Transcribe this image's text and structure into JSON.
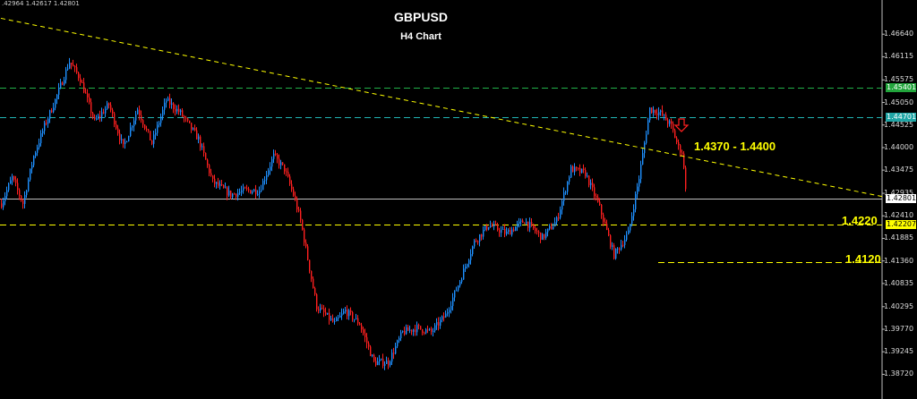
{
  "ohlc_text": ".42964 1.42617 1.42801",
  "chart_data": {
    "type": "candlestick",
    "title": "GBPUSD",
    "subtitle": "H4 Chart",
    "y_ticks": [
      "1.46640",
      "1.46115",
      "1.45575",
      "1.45050",
      "1.44525",
      "1.44000",
      "1.43475",
      "1.42935",
      "1.42410",
      "1.41885",
      "1.41360",
      "1.40835",
      "1.40295",
      "1.39770",
      "1.39245",
      "1.38720"
    ],
    "ylim": [
      1.3852,
      1.4704
    ],
    "price_tags": [
      {
        "text": "1.45401",
        "value": 1.45401,
        "bg": "#22a53c",
        "fg": "#ffffff"
      },
      {
        "text": "1.44701",
        "value": 1.44701,
        "bg": "#1fa5a5",
        "fg": "#ffffff"
      },
      {
        "text": "1.42801",
        "value": 1.42801,
        "bg": "#ffffff",
        "fg": "#000000"
      },
      {
        "text": "1.42207",
        "value": 1.42207,
        "bg": "#ffff00",
        "fg": "#000000"
      }
    ],
    "horizontal_lines": [
      {
        "name": "green-dashed-level",
        "value": 1.45401,
        "color": "#22b24a",
        "style": "dashed",
        "from": 0.0
      },
      {
        "name": "teal-dashed-level",
        "value": 1.44701,
        "color": "#22b6b6",
        "style": "dashed",
        "from": 0.0
      },
      {
        "name": "current-price-line",
        "value": 1.42801,
        "color": "#bfbfbf",
        "style": "solid",
        "from": 0.0
      },
      {
        "name": "support-1-4220-line",
        "value": 1.42207,
        "color": "#ffff00",
        "style": "dashed",
        "from": 0.0
      },
      {
        "name": "support-1-4120-line",
        "value": 1.4133,
        "color": "#ffff00",
        "style": "dashed",
        "from": 735
      }
    ],
    "trendline": {
      "color": "#ffff00",
      "style": "dashed",
      "start": {
        "bar": 0,
        "price": 1.4701
      },
      "end": {
        "bar": 198,
        "price": 1.4286
      }
    },
    "annotations": [
      {
        "name": "resistance-zone-label",
        "text": "1.4370 - 1.4400",
        "price": 1.4402
      },
      {
        "name": "support-1-4220-label",
        "text": "1.4220",
        "price": 1.4229
      },
      {
        "name": "support-1-4120-label",
        "text": "1.4120",
        "price": 1.414
      }
    ],
    "arrow": {
      "direction": "down",
      "color": "#ff2020",
      "price": 1.4452
    },
    "colors": {
      "up": "#1e90ff",
      "down": "#ff2020"
    },
    "close_path": [
      [
        0,
        1.427
      ],
      [
        6,
        1.433
      ],
      [
        12,
        1.427
      ],
      [
        18,
        1.438
      ],
      [
        24,
        1.445
      ],
      [
        30,
        1.451
      ],
      [
        38,
        1.46
      ],
      [
        44,
        1.456
      ],
      [
        52,
        1.446
      ],
      [
        60,
        1.45
      ],
      [
        68,
        1.44
      ],
      [
        76,
        1.449
      ],
      [
        84,
        1.441
      ],
      [
        92,
        1.451
      ],
      [
        100,
        1.448
      ],
      [
        110,
        1.442
      ],
      [
        118,
        1.432
      ],
      [
        128,
        1.429
      ],
      [
        136,
        1.43
      ],
      [
        144,
        1.43
      ],
      [
        152,
        1.438
      ],
      [
        158,
        1.435
      ],
      [
        163,
        1.429
      ],
      [
        167,
        1.423
      ],
      [
        176,
        1.403
      ],
      [
        186,
        1.399
      ],
      [
        192,
        1.402
      ],
      [
        200,
        1.399
      ],
      [
        208,
        1.39
      ],
      [
        216,
        1.39
      ],
      [
        224,
        1.397
      ],
      [
        232,
        1.398
      ],
      [
        240,
        1.397
      ],
      [
        248,
        1.401
      ],
      [
        256,
        1.409
      ],
      [
        264,
        1.418
      ],
      [
        272,
        1.422
      ],
      [
        282,
        1.42
      ],
      [
        292,
        1.423
      ],
      [
        302,
        1.419
      ],
      [
        310,
        1.423
      ],
      [
        318,
        1.435
      ],
      [
        326,
        1.434
      ],
      [
        334,
        1.426
      ],
      [
        342,
        1.415
      ],
      [
        350,
        1.42
      ],
      [
        356,
        1.433
      ],
      [
        362,
        1.449
      ],
      [
        368,
        1.448
      ],
      [
        374,
        1.445
      ],
      [
        378,
        1.44
      ],
      [
        380,
        1.439
      ],
      [
        382,
        1.431
      ]
    ]
  }
}
